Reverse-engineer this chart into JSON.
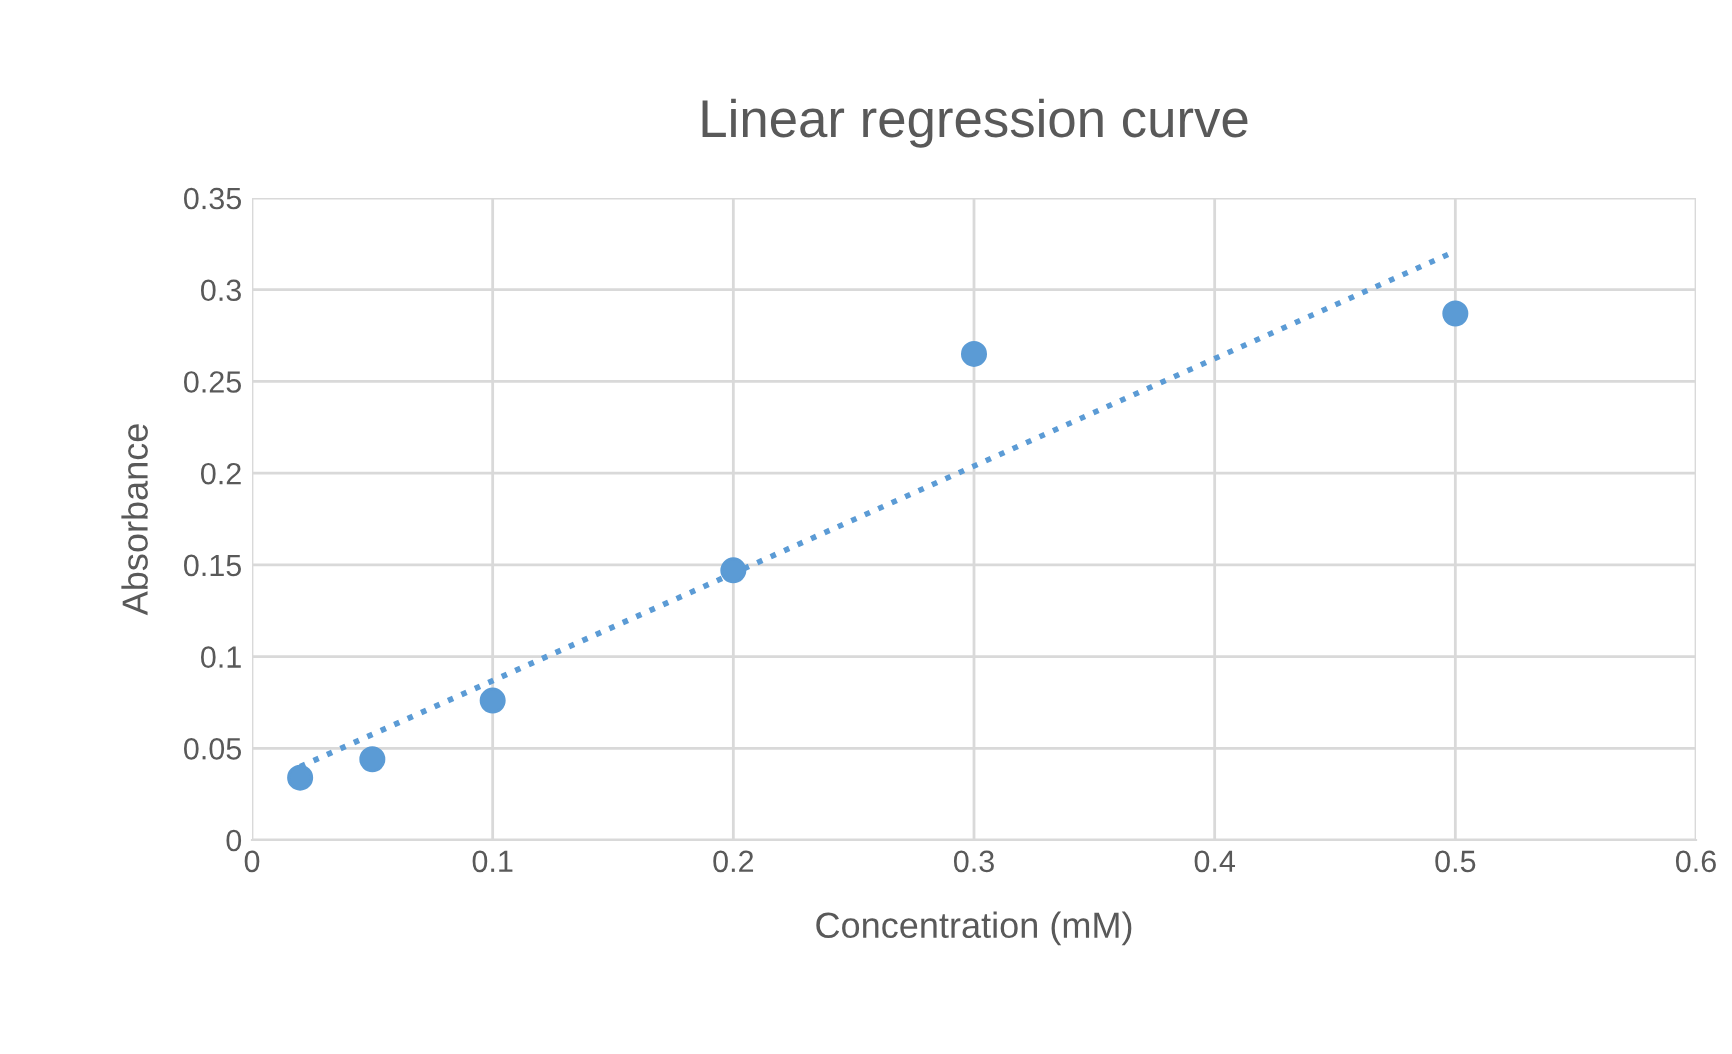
{
  "chart_data": {
    "type": "scatter",
    "title": "Linear regression curve",
    "xlabel": "Concentration (mM)",
    "ylabel": "Absorbance",
    "series": [
      {
        "color": "#5b9bd5",
        "marker": "circle",
        "x": [
          0.02,
          0.05,
          0.1,
          0.2,
          0.3,
          0.5
        ],
        "values": [
          0.034,
          0.044,
          0.076,
          0.147,
          0.265,
          0.287
        ]
      },
      {
        "type": "line",
        "color": "#5b9bd5",
        "line_style": "dotted",
        "marker": "none",
        "x": [
          0.02,
          0.5
        ],
        "values": [
          0.04,
          0.321
        ]
      }
    ],
    "xlim": [
      0,
      0.6
    ],
    "xticks": [
      0,
      0.1,
      0.2,
      0.3,
      0.4,
      0.5,
      0.6
    ],
    "ylim": [
      0,
      0.35
    ],
    "yticks": [
      0,
      0.05,
      0.1,
      0.15,
      0.2,
      0.25,
      0.3,
      0.35
    ],
    "grid": true
  }
}
